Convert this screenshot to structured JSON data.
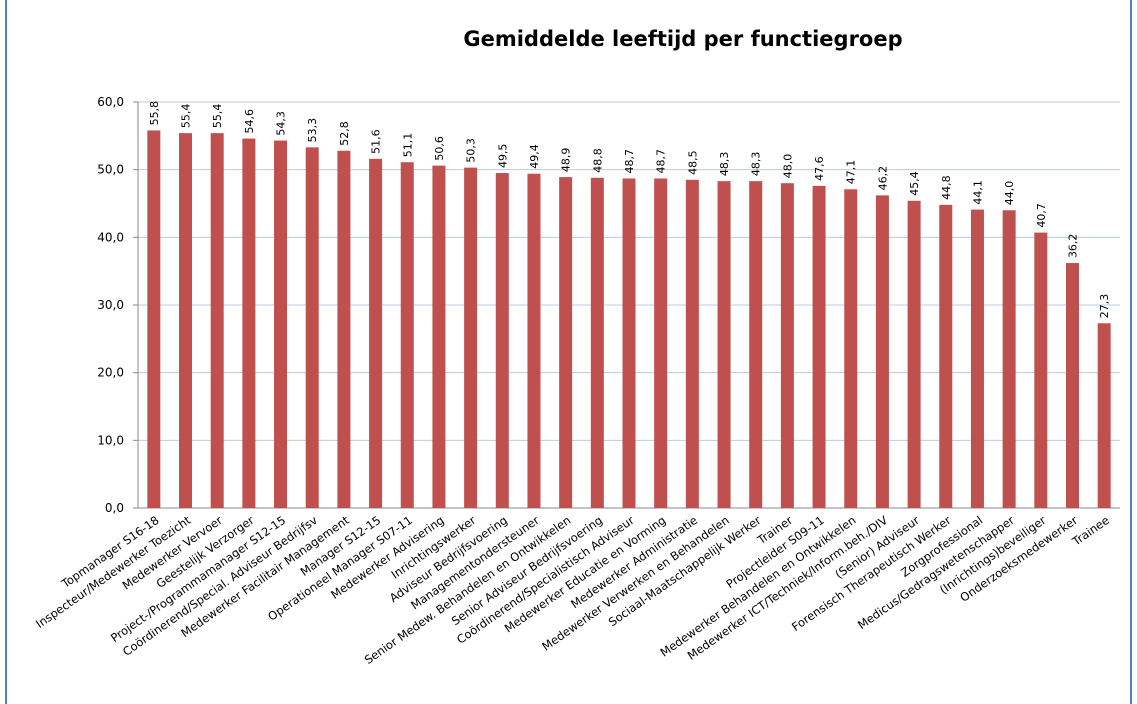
{
  "chart_data": {
    "type": "bar",
    "title": "Gemiddelde leeftijd per functiegroep",
    "categories": [
      "Topmanager S16-18",
      "Inspecteur/Medewerker Toezicht",
      "Medewerker Vervoer",
      "Geestelijk Verzorger",
      "Project-/Programmamanager S12-15",
      "Coördinerend/Special. Adviseur Bedrijfsv",
      "Medewerker Facilitair Management",
      "Manager S12-15",
      "Operationeel Manager S07-11",
      "Medewerker Advisering",
      "Inrichtingswerker",
      "Adviseur Bedrijfsvoering",
      "Managementondersteuner",
      "Senior Medew. Behandelen en Ontwikkelen",
      "Senior Adviseur Bedrijfsvoering",
      "Coördinerend/Specialistisch Adviseur",
      "Medewerker Educatie en Vorming",
      "Medewerker Administratie",
      "Medewerker Verwerken en Behandelen",
      "Sociaal-Maatschappelijk Werker",
      "Trainer",
      "Projectleider S09-11",
      "Medewerker Behandelen en Ontwikkelen",
      "Medewerker ICT/Techniek/Inform.beh./DIV",
      "(Senior) Adviseur",
      "Forensisch Therapeutisch Werker",
      "Zorgprofessional",
      "Medicus/Gedragswetenschapper",
      "(Inrichtings)beveiliger",
      "Onderzoeksmedewerker",
      "Trainee"
    ],
    "values": [
      55.8,
      55.4,
      55.4,
      54.6,
      54.3,
      53.3,
      52.8,
      51.6,
      51.1,
      50.6,
      50.3,
      49.5,
      49.4,
      48.9,
      48.8,
      48.7,
      48.7,
      48.5,
      48.3,
      48.3,
      48.0,
      47.6,
      47.1,
      46.2,
      45.4,
      44.8,
      44.1,
      44.0,
      40.7,
      36.2,
      27.3
    ],
    "value_labels": [
      "55,8",
      "55,4",
      "55,4",
      "54,6",
      "54,3",
      "53,3",
      "52,8",
      "51,6",
      "51,1",
      "50,6",
      "50,3",
      "49,5",
      "49,4",
      "48,9",
      "48,8",
      "48,7",
      "48,7",
      "48,5",
      "48,3",
      "48,3",
      "48,0",
      "47,6",
      "47,1",
      "46,2",
      "45,4",
      "44,8",
      "44,1",
      "44,0",
      "40,7",
      "36,2",
      "27,3"
    ],
    "color": "#c0504d",
    "ylim": [
      0,
      60
    ],
    "yticks": [
      {
        "value": 0,
        "label": "0,0"
      },
      {
        "value": 10,
        "label": "10,0"
      },
      {
        "value": 20,
        "label": "20,0"
      },
      {
        "value": 30,
        "label": "30,0"
      },
      {
        "value": 40,
        "label": "40,0"
      },
      {
        "value": 50,
        "label": "50,0"
      },
      {
        "value": 60,
        "label": "60,0"
      }
    ],
    "grid": true
  }
}
